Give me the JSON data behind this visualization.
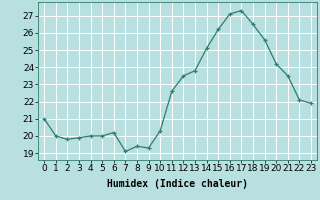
{
  "x": [
    0,
    1,
    2,
    3,
    4,
    5,
    6,
    7,
    8,
    9,
    10,
    11,
    12,
    13,
    14,
    15,
    16,
    17,
    18,
    19,
    20,
    21,
    22,
    23
  ],
  "y": [
    21.0,
    20.0,
    19.8,
    19.9,
    20.0,
    20.0,
    20.2,
    19.1,
    19.4,
    19.3,
    20.3,
    22.6,
    23.5,
    23.8,
    25.1,
    26.2,
    27.1,
    27.3,
    26.5,
    25.6,
    24.2,
    23.5,
    22.1,
    21.9
  ],
  "line_color": "#2e7d6e",
  "marker": "+",
  "bg_color": "#b8e0e0",
  "grid_color": "#ffffff",
  "ylabel_ticks": [
    19,
    20,
    21,
    22,
    23,
    24,
    25,
    26,
    27
  ],
  "xlabel": "Humidex (Indice chaleur)",
  "xlabel_fontsize": 7,
  "tick_fontsize": 6.5,
  "ylim": [
    18.6,
    27.8
  ],
  "xlim": [
    -0.5,
    23.5
  ]
}
